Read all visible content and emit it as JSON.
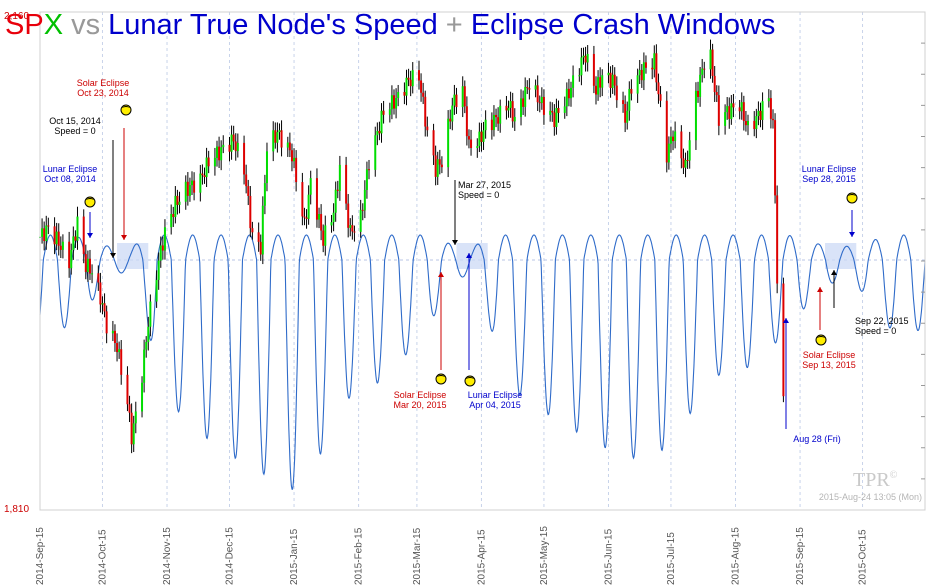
{
  "title": {
    "parts": [
      {
        "text": "SP",
        "color": "#e8000b"
      },
      {
        "text": "X",
        "color": "#00c000"
      },
      {
        "text": " vs ",
        "color": "#999999"
      },
      {
        "text": "Lunar True Node's Speed",
        "color": "#0000cc"
      },
      {
        "text": " + ",
        "color": "#999999"
      },
      {
        "text": "Eclipse Crash Windows",
        "color": "#0000cc"
      }
    ]
  },
  "watermark": {
    "logo": "TPR",
    "mark": "©",
    "timestamp": "2015-Aug-24 13:05 (Mon)"
  },
  "colors": {
    "up": "#00dd00",
    "down": "#dd0000",
    "neutral": "#000000",
    "speed_line": "#2f6bc9",
    "window_fill": "#ccd9f5",
    "grid": "#c8d3ea",
    "solar": "#cc0000",
    "lunar": "#0000cc",
    "speed_zero": "#000000",
    "eclipse_icon": "#ffee00"
  },
  "chart_data": {
    "type": "line",
    "y_axis": {
      "min": 1810,
      "max": 2160,
      "ticks": [
        "2,160",
        "1,810"
      ]
    },
    "x_axis": {
      "start": "2014-09-01",
      "end": "2015-10-31",
      "ticks": [
        {
          "date": "2014-09-01",
          "label": "2014-Sep-15"
        },
        {
          "date": "2014-10-01",
          "label": "2014-Oct-15"
        },
        {
          "date": "2014-11-01",
          "label": "2014-Nov-15"
        },
        {
          "date": "2014-12-01",
          "label": "2014-Dec-15"
        },
        {
          "date": "2015-01-01",
          "label": "2015-Jan-15"
        },
        {
          "date": "2015-02-01",
          "label": "2015-Feb-15"
        },
        {
          "date": "2015-03-01",
          "label": "2015-Mar-15"
        },
        {
          "date": "2015-04-01",
          "label": "2015-Apr-15"
        },
        {
          "date": "2015-05-01",
          "label": "2015-May-15"
        },
        {
          "date": "2015-06-01",
          "label": "2015-Jun-15"
        },
        {
          "date": "2015-07-01",
          "label": "2015-Jul-15"
        },
        {
          "date": "2015-08-01",
          "label": "2015-Aug-15"
        },
        {
          "date": "2015-09-01",
          "label": "2015-Sep-15"
        },
        {
          "date": "2015-10-01",
          "label": "2015-Oct-15"
        }
      ]
    },
    "spx_close": [
      [
        "2014-09-01",
        2002
      ],
      [
        "2014-09-05",
        2008
      ],
      [
        "2014-09-10",
        1998
      ],
      [
        "2014-09-15",
        1985
      ],
      [
        "2014-09-19",
        2012
      ],
      [
        "2014-09-23",
        1982
      ],
      [
        "2014-09-26",
        1978
      ],
      [
        "2014-09-30",
        1960
      ],
      [
        "2014-10-03",
        1940
      ],
      [
        "2014-10-08",
        1925
      ],
      [
        "2014-10-13",
        1885
      ],
      [
        "2014-10-15",
        1862
      ],
      [
        "2014-10-16",
        1868
      ],
      [
        "2014-10-20",
        1905
      ],
      [
        "2014-10-23",
        1942
      ],
      [
        "2014-10-28",
        1985
      ],
      [
        "2014-10-31",
        2005
      ],
      [
        "2014-11-05",
        2025
      ],
      [
        "2014-11-10",
        2035
      ],
      [
        "2014-11-17",
        2042
      ],
      [
        "2014-11-21",
        2055
      ],
      [
        "2014-11-28",
        2064
      ],
      [
        "2014-12-03",
        2070
      ],
      [
        "2014-12-08",
        2050
      ],
      [
        "2014-12-12",
        2002
      ],
      [
        "2014-12-16",
        1995
      ],
      [
        "2014-12-19",
        2065
      ],
      [
        "2014-12-24",
        2075
      ],
      [
        "2014-12-31",
        2060
      ],
      [
        "2015-01-06",
        2010
      ],
      [
        "2015-01-09",
        2040
      ],
      [
        "2015-01-15",
        2000
      ],
      [
        "2015-01-20",
        2020
      ],
      [
        "2015-01-23",
        2050
      ],
      [
        "2015-01-28",
        2005
      ],
      [
        "2015-02-02",
        2015
      ],
      [
        "2015-02-06",
        2055
      ],
      [
        "2015-02-13",
        2090
      ],
      [
        "2015-02-20",
        2100
      ],
      [
        "2015-02-25",
        2112
      ],
      [
        "2015-03-02",
        2115
      ],
      [
        "2015-03-06",
        2075
      ],
      [
        "2015-03-10",
        2050
      ],
      [
        "2015-03-13",
        2055
      ],
      [
        "2015-03-18",
        2095
      ],
      [
        "2015-03-23",
        2105
      ],
      [
        "2015-03-26",
        2065
      ],
      [
        "2015-03-31",
        2070
      ],
      [
        "2015-04-03",
        2080
      ],
      [
        "2015-04-08",
        2085
      ],
      [
        "2015-04-14",
        2095
      ],
      [
        "2015-04-17",
        2085
      ],
      [
        "2015-04-24",
        2110
      ],
      [
        "2015-04-30",
        2095
      ],
      [
        "2015-05-06",
        2085
      ],
      [
        "2015-05-12",
        2100
      ],
      [
        "2015-05-19",
        2125
      ],
      [
        "2015-05-21",
        2130
      ],
      [
        "2015-05-26",
        2105
      ],
      [
        "2015-05-29",
        2115
      ],
      [
        "2015-06-03",
        2112
      ],
      [
        "2015-06-09",
        2085
      ],
      [
        "2015-06-12",
        2108
      ],
      [
        "2015-06-18",
        2120
      ],
      [
        "2015-06-23",
        2125
      ],
      [
        "2015-06-29",
        2060
      ],
      [
        "2015-07-02",
        2075
      ],
      [
        "2015-07-08",
        2050
      ],
      [
        "2015-07-13",
        2100
      ],
      [
        "2015-07-17",
        2125
      ],
      [
        "2015-07-20",
        2128
      ],
      [
        "2015-07-24",
        2085
      ],
      [
        "2015-07-28",
        2090
      ],
      [
        "2015-08-03",
        2095
      ],
      [
        "2015-08-07",
        2078
      ],
      [
        "2015-08-11",
        2085
      ],
      [
        "2015-08-17",
        2100
      ],
      [
        "2015-08-19",
        2078
      ],
      [
        "2015-08-20",
        2035
      ],
      [
        "2015-08-21",
        1970
      ],
      [
        "2015-08-24",
        1885
      ]
    ],
    "speed_curve": {
      "amplitude_profile": [
        [
          "2014-09-01",
          0.35
        ],
        [
          "2014-09-20",
          0.25
        ],
        [
          "2014-10-05",
          0.06
        ],
        [
          "2014-10-15",
          0.05
        ],
        [
          "2014-11-01",
          0.6
        ],
        [
          "2014-11-25",
          0.8
        ],
        [
          "2014-12-15",
          0.9
        ],
        [
          "2015-01-05",
          1.0
        ],
        [
          "2015-01-25",
          0.6
        ],
        [
          "2015-02-15",
          0.5
        ],
        [
          "2015-03-05",
          0.3
        ],
        [
          "2015-03-20",
          0.08
        ],
        [
          "2015-03-28",
          0.06
        ],
        [
          "2015-04-15",
          0.55
        ],
        [
          "2015-05-10",
          0.7
        ],
        [
          "2015-06-10",
          0.85
        ],
        [
          "2015-07-01",
          0.8
        ],
        [
          "2015-07-20",
          0.5
        ],
        [
          "2015-08-10",
          0.45
        ],
        [
          "2015-08-28",
          0.28
        ],
        [
          "2015-09-10",
          0.12
        ],
        [
          "2015-09-25",
          0.07
        ],
        [
          "2015-10-15",
          0.3
        ],
        [
          "2015-10-31",
          0.3
        ]
      ],
      "cycle_days": 13.66
    },
    "eclipse_windows": [
      {
        "start": "2014-10-08",
        "end": "2014-10-23"
      },
      {
        "start": "2015-03-20",
        "end": "2015-04-04"
      },
      {
        "start": "2015-09-13",
        "end": "2015-09-28"
      }
    ],
    "annotations": [
      {
        "kind": "lunar",
        "date": "2014-10-08",
        "lines": [
          "Lunar Eclipse",
          "Oct 08, 2014"
        ],
        "icon": true
      },
      {
        "kind": "speed_zero",
        "date": "2014-10-15",
        "lines": [
          "Oct 15, 2014",
          "Speed = 0"
        ],
        "icon": false
      },
      {
        "kind": "solar",
        "date": "2014-10-23",
        "lines": [
          "Solar Eclipse",
          "Oct 23, 2014"
        ],
        "icon": true
      },
      {
        "kind": "speed_zero",
        "date": "2015-03-27",
        "lines": [
          "Mar 27, 2015",
          "Speed = 0"
        ],
        "icon": false
      },
      {
        "kind": "solar",
        "date": "2015-03-20",
        "lines": [
          "Solar Eclipse",
          "Mar 20, 2015"
        ],
        "icon": true
      },
      {
        "kind": "lunar",
        "date": "2015-04-04",
        "lines": [
          "Lunar Eclipse",
          "Apr 04, 2015"
        ],
        "icon": true
      },
      {
        "kind": "lunar",
        "date": "2015-08-28",
        "lines": [
          "Aug 28 (Fri)"
        ],
        "icon": false
      },
      {
        "kind": "solar",
        "date": "2015-09-13",
        "lines": [
          "Solar Eclipse",
          "Sep 13, 2015"
        ],
        "icon": true
      },
      {
        "kind": "speed_zero",
        "date": "2015-09-22",
        "lines": [
          "Sep 22, 2015",
          "Speed = 0"
        ],
        "icon": false
      },
      {
        "kind": "lunar",
        "date": "2015-09-28",
        "lines": [
          "Lunar Eclipse",
          "Sep 28, 2015"
        ],
        "icon": true
      }
    ]
  }
}
